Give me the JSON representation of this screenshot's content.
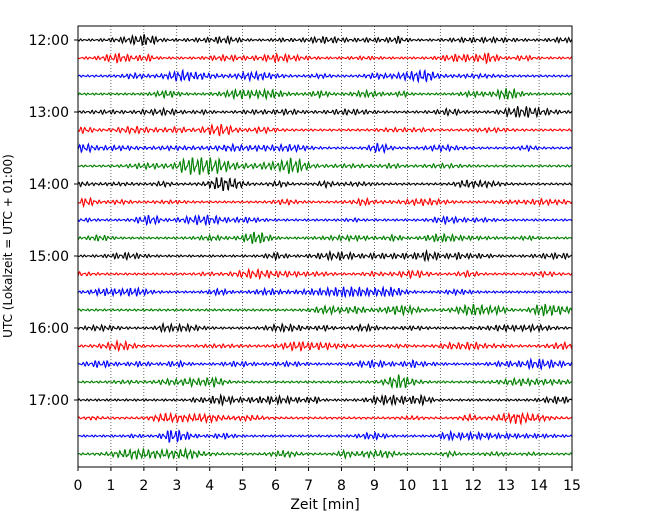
{
  "chart_data": {
    "type": "line",
    "title": "",
    "xlabel": "Zeit  [min]",
    "ylabel": "UTC (Lokalzeit = UTC + 01:00)",
    "xlim": [
      0,
      15
    ],
    "x_ticks": [
      "0",
      "1",
      "2",
      "3",
      "4",
      "5",
      "6",
      "7",
      "8",
      "9",
      "10",
      "11",
      "12",
      "13",
      "14",
      "15"
    ],
    "y_tick_labels": [
      "12:00",
      "13:00",
      "14:00",
      "15:00",
      "16:00",
      "17:00"
    ],
    "trace_start_times": [
      "12:00",
      "12:15",
      "12:30",
      "12:45",
      "13:00",
      "13:15",
      "13:30",
      "13:45",
      "14:00",
      "14:15",
      "14:30",
      "14:45",
      "15:00",
      "15:15",
      "15:30",
      "15:45",
      "16:00",
      "16:15",
      "16:30",
      "16:45",
      "17:00",
      "17:15",
      "17:30",
      "17:45"
    ],
    "trace_colors": [
      "#000000",
      "#ff0000",
      "#0000ff",
      "#008000"
    ],
    "trace_minutes": 15,
    "vertical_grid": "dotted",
    "events": [
      {
        "trace_start": "13:45",
        "minute_from": 3.0,
        "minute_to": 5.8,
        "description": "erhöhte Amplitude"
      }
    ]
  }
}
